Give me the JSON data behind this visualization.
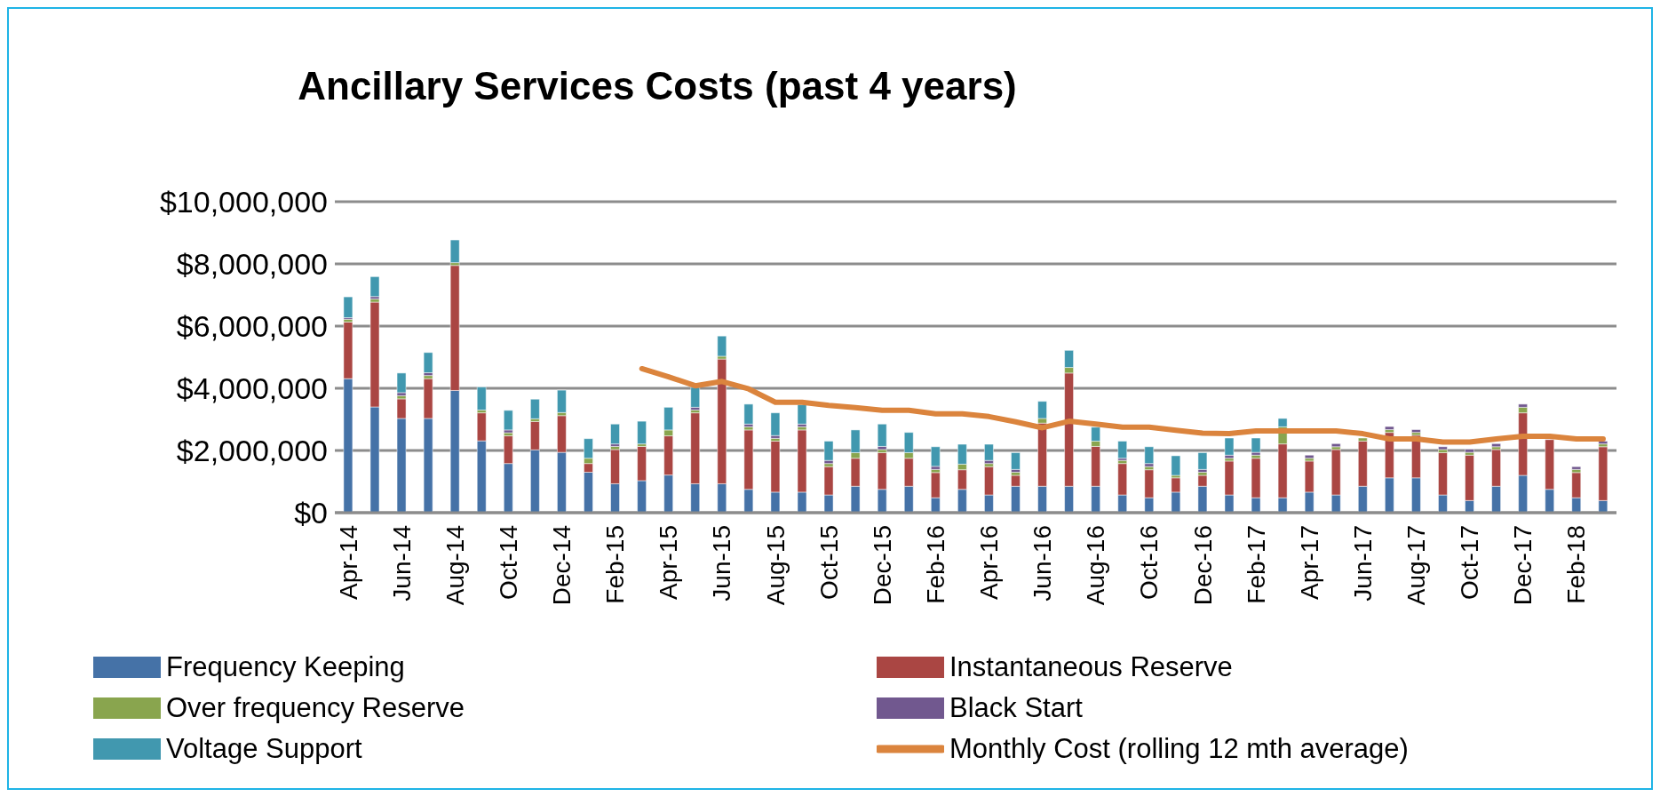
{
  "chart_data": {
    "type": "bar",
    "title": "Ancillary Services Costs (past 4 years)",
    "stacked": true,
    "grid": "y",
    "legend": "bottom",
    "marker": "none",
    "categories": [
      "Apr-14",
      null,
      "Jun-14",
      null,
      "Aug-14",
      null,
      "Oct-14",
      null,
      "Dec-14",
      null,
      "Feb-15",
      null,
      "Apr-15",
      null,
      "Jun-15",
      null,
      "Aug-15",
      null,
      "Oct-15",
      null,
      "Dec-15",
      null,
      "Feb-16",
      null,
      "Apr-16",
      null,
      "Jun-16",
      null,
      "Aug-16",
      null,
      "Oct-16",
      null,
      "Dec-16",
      null,
      "Feb-17",
      null,
      "Apr-17",
      null,
      "Jun-17",
      null,
      "Aug-17",
      null,
      "Oct-17",
      null,
      "Dec-17",
      null,
      "Feb-18",
      null
    ],
    "ylim": [
      0,
      10000000
    ],
    "yticks": [
      {
        "value": 0,
        "label": "$0"
      },
      {
        "value": 2000000,
        "label": "$2,000,000"
      },
      {
        "value": 4000000,
        "label": "$4,000,000"
      },
      {
        "value": 6000000,
        "label": "$6,000,000"
      },
      {
        "value": 8000000,
        "label": "$8,000,000"
      },
      {
        "value": 10000000,
        "label": "$10,000,000"
      }
    ],
    "series": [
      {
        "name": "Frequency Keeping",
        "color": "#4572a7",
        "values": [
          4310000,
          3400000,
          3030000,
          3030000,
          3930000,
          2310000,
          1580000,
          2020000,
          1940000,
          1300000,
          930000,
          1030000,
          1210000,
          930000,
          930000,
          750000,
          660000,
          660000,
          570000,
          850000,
          750000,
          850000,
          480000,
          750000,
          570000,
          850000,
          850000,
          850000,
          850000,
          570000,
          480000,
          660000,
          850000,
          570000,
          480000,
          480000,
          660000,
          570000,
          850000,
          1120000,
          1120000,
          570000,
          390000,
          850000,
          1200000,
          750000,
          480000,
          390000
        ]
      },
      {
        "name": "Instantaneous Reserve",
        "color": "#aa4643",
        "values": [
          1820000,
          3370000,
          630000,
          1280000,
          4020000,
          900000,
          890000,
          910000,
          1180000,
          280000,
          1100000,
          1100000,
          1260000,
          2280000,
          4010000,
          1910000,
          1640000,
          2000000,
          910000,
          900000,
          1180000,
          900000,
          810000,
          630000,
          910000,
          350000,
          2030000,
          3640000,
          1280000,
          1010000,
          900000,
          460000,
          350000,
          1090000,
          1270000,
          1730000,
          1000000,
          1460000,
          1450000,
          1460000,
          1370000,
          1360000,
          1460000,
          1180000,
          2010000,
          1600000,
          810000,
          1730000
        ]
      },
      {
        "name": "Over frequency Reserve",
        "color": "#89a54e",
        "values": [
          90000,
          100000,
          100000,
          100000,
          90000,
          90000,
          100000,
          90000,
          100000,
          170000,
          100000,
          80000,
          190000,
          90000,
          90000,
          100000,
          90000,
          100000,
          100000,
          180000,
          100000,
          180000,
          100000,
          180000,
          100000,
          100000,
          150000,
          180000,
          170000,
          100000,
          100000,
          80000,
          100000,
          90000,
          100000,
          550000,
          90000,
          90000,
          100000,
          90000,
          90000,
          100000,
          90000,
          90000,
          180000,
          null,
          100000,
          90000
        ]
      },
      {
        "name": "Black Start",
        "color": "#71588f",
        "values": [
          50000,
          80000,
          100000,
          90000,
          null,
          null,
          90000,
          null,
          null,
          null,
          80000,
          null,
          null,
          90000,
          null,
          90000,
          90000,
          90000,
          100000,
          null,
          100000,
          null,
          100000,
          null,
          100000,
          90000,
          null,
          null,
          null,
          70000,
          100000,
          null,
          90000,
          100000,
          90000,
          null,
          100000,
          100000,
          null,
          100000,
          90000,
          90000,
          100000,
          100000,
          100000,
          null,
          90000,
          90000
        ]
      },
      {
        "name": "Voltage Support",
        "color": "#4198af",
        "values": [
          670000,
          640000,
          630000,
          650000,
          730000,
          740000,
          630000,
          630000,
          720000,
          630000,
          640000,
          730000,
          730000,
          640000,
          650000,
          640000,
          730000,
          620000,
          620000,
          730000,
          720000,
          650000,
          630000,
          640000,
          520000,
          540000,
          550000,
          550000,
          450000,
          550000,
          540000,
          630000,
          540000,
          550000,
          460000,
          270000,
          null,
          null,
          null,
          null,
          null,
          null,
          null,
          null,
          null,
          null,
          null,
          null
        ]
      },
      {
        "name": "Monthly Cost (rolling 12 mth average)",
        "type": "line",
        "color": "#db843d",
        "values": [
          null,
          null,
          null,
          null,
          null,
          null,
          null,
          null,
          null,
          null,
          null,
          4630000,
          4370000,
          4080000,
          4220000,
          3980000,
          3550000,
          3550000,
          3450000,
          3380000,
          3290000,
          3290000,
          3180000,
          3180000,
          3090000,
          2920000,
          2730000,
          2940000,
          2850000,
          2750000,
          2750000,
          2650000,
          2560000,
          2540000,
          2630000,
          2630000,
          2630000,
          2630000,
          2540000,
          2370000,
          2370000,
          2270000,
          2270000,
          2370000,
          2460000,
          2460000,
          2370000,
          2370000
        ]
      }
    ]
  }
}
